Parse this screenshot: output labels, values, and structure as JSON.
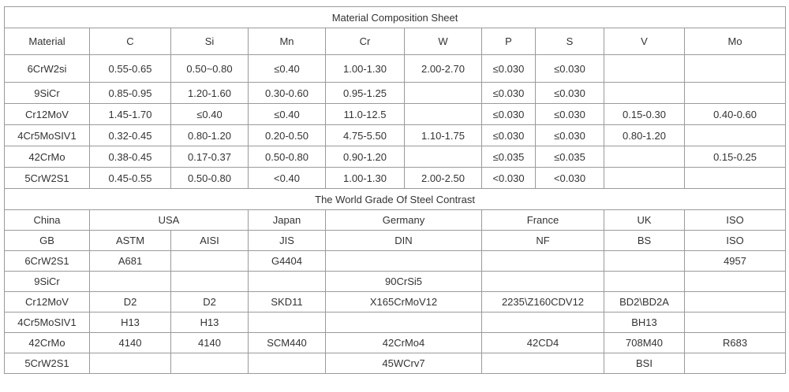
{
  "composition": {
    "title": "Material Composition Sheet",
    "headers": [
      "Material",
      "C",
      "Si",
      "Mn",
      "Cr",
      "W",
      "P",
      "S",
      "V",
      "Mo"
    ],
    "rows": [
      [
        "6CrW2si",
        "0.55-0.65",
        "0.50~0.80",
        "≤0.40",
        "1.00-1.30",
        "2.00-2.70",
        "≤0.030",
        "≤0.030",
        null,
        null
      ],
      [
        "9SiCr",
        "0.85-0.95",
        "1.20-1.60",
        "0.30-0.60",
        "0.95-1.25",
        null,
        "≤0.030",
        "≤0.030",
        null,
        null
      ],
      [
        "Cr12MoV",
        "1.45-1.70",
        "≤0.40",
        "≤0.40",
        "11.0-12.5",
        null,
        "≤0.030",
        "≤0.030",
        "0.15-0.30",
        "0.40-0.60"
      ],
      [
        "4Cr5MoSIV1",
        "0.32-0.45",
        "0.80-1.20",
        "0.20-0.50",
        "4.75-5.50",
        "1.10-1.75",
        "≤0.030",
        "≤0.030",
        "0.80-1.20",
        null
      ],
      [
        "42CrMo",
        "0.38-0.45",
        "0.17-0.37",
        "0.50-0.80",
        "0.90-1.20",
        null,
        "≤0.035",
        "≤0.035",
        null,
        "0.15-0.25"
      ],
      [
        "5CrW2S1",
        "0.45-0.55",
        "0.50-0.80",
        "<0.40",
        "1.00-1.30",
        "2.00-2.50",
        "<0.030",
        "<0.030",
        null,
        null
      ]
    ]
  },
  "contrast": {
    "title": "The World Grade Of Steel Contrast",
    "countries": [
      "China",
      "USA",
      "Japan",
      "Germany",
      "France",
      "UK",
      "ISO"
    ],
    "standards": [
      "GB",
      "ASTM",
      "AISI",
      "JIS",
      "DIN",
      "NF",
      "BS",
      "ISO"
    ],
    "rows": [
      [
        "6CrW2S1",
        "A681",
        null,
        "G4404",
        null,
        null,
        null,
        "4957"
      ],
      [
        "9SiCr",
        null,
        null,
        null,
        "90CrSi5",
        null,
        null,
        null
      ],
      [
        "Cr12MoV",
        "D2",
        "D2",
        "SKD11",
        "X165CrMoV12",
        "2235\\Z160CDV12",
        "BD2\\BD2A",
        null
      ],
      [
        "4Cr5MoSIV1",
        "H13",
        "H13",
        null,
        null,
        null,
        "BH13",
        null
      ],
      [
        "42CrMo",
        "4140",
        "4140",
        "SCM440",
        "42CrMo4",
        "42CD4",
        "708M40",
        "R683"
      ],
      [
        "5CrW2S1",
        null,
        null,
        null,
        "45WCrv7",
        null,
        "BSI",
        null
      ]
    ]
  }
}
